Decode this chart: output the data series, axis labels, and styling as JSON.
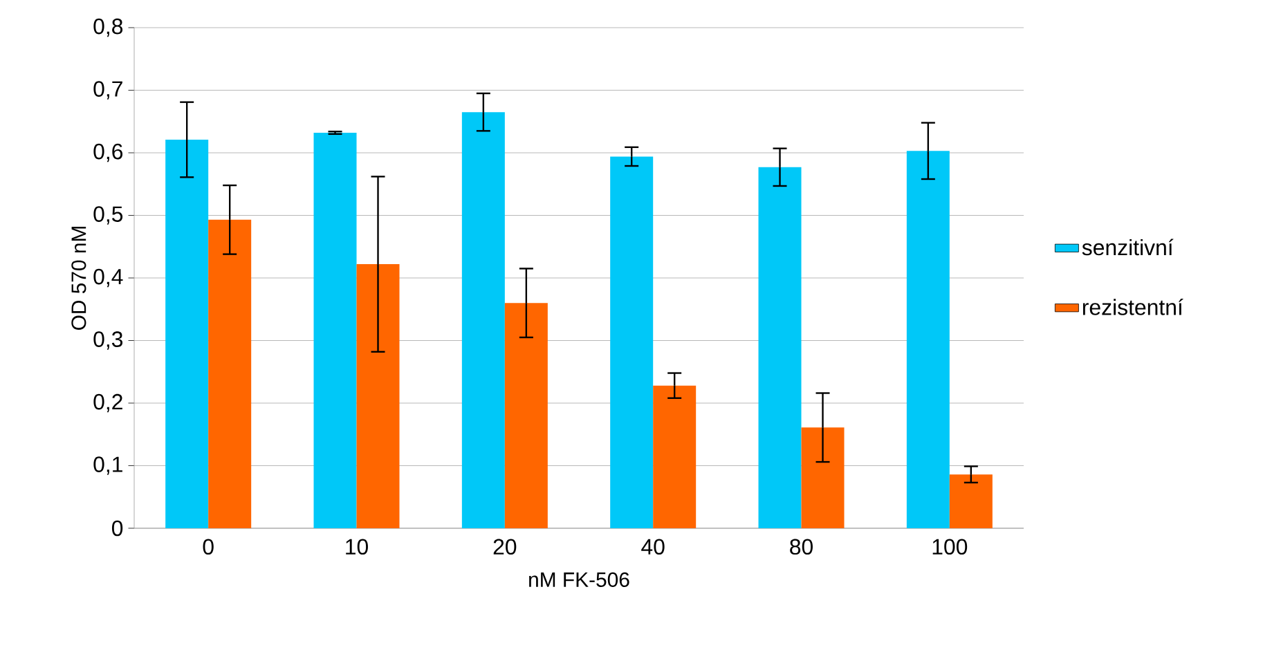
{
  "chart_data": {
    "type": "bar",
    "xlabel": "nM FK-506",
    "ylabel": "OD 570 nM",
    "categories": [
      "0",
      "10",
      "20",
      "40",
      "80",
      "100"
    ],
    "series": [
      {
        "name": "senzitivní",
        "color": "#00c8f8",
        "values": [
          0.621,
          0.632,
          0.665,
          0.594,
          0.577,
          0.603
        ],
        "errors": [
          0.06,
          0.002,
          0.03,
          0.015,
          0.03,
          0.045
        ]
      },
      {
        "name": "rezistentní",
        "color": "#ff6600",
        "values": [
          0.493,
          0.422,
          0.36,
          0.228,
          0.161,
          0.086
        ],
        "errors": [
          0.055,
          0.14,
          0.055,
          0.02,
          0.055,
          0.013
        ]
      }
    ],
    "ylim": [
      0,
      0.8
    ],
    "yticks": [
      0,
      {
        "value": 0.1,
        "label": "0,1"
      },
      {
        "value": 0.2,
        "label": "0,2"
      },
      {
        "value": 0.3,
        "label": "0,3"
      },
      {
        "value": 0.4,
        "label": "0,4"
      },
      {
        "value": 0.5,
        "label": "0,5"
      },
      {
        "value": 0.6,
        "label": "0,6"
      },
      {
        "value": 0.7,
        "label": "0,7"
      },
      {
        "value": 0.8,
        "label": "0,8"
      }
    ],
    "grid": "y",
    "legend": "right"
  }
}
